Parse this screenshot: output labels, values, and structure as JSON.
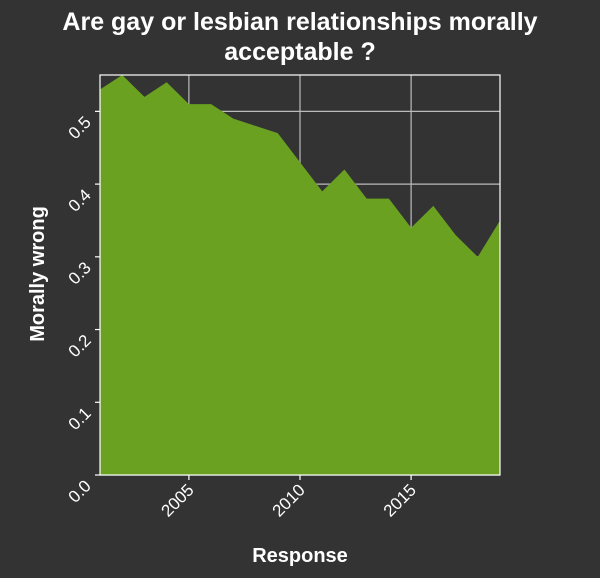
{
  "chart_data": {
    "type": "area",
    "title": "Are gay or lesbian relationships morally acceptable ?",
    "title_lines": [
      "Are gay or lesbian relationships morally",
      "acceptable ?"
    ],
    "xlabel": "Response",
    "ylabel": "Morally wrong",
    "x": [
      2001,
      2002,
      2003,
      2004,
      2005,
      2006,
      2007,
      2008,
      2009,
      2010,
      2011,
      2012,
      2013,
      2014,
      2015,
      2016,
      2017,
      2018,
      2019
    ],
    "series": [
      {
        "values": [
          0.53,
          0.55,
          0.52,
          0.54,
          0.51,
          0.51,
          0.49,
          0.48,
          0.47,
          0.43,
          0.39,
          0.42,
          0.38,
          0.38,
          0.34,
          0.37,
          0.33,
          0.3,
          0.35
        ]
      }
    ],
    "xlim": [
      2001,
      2019
    ],
    "ylim": [
      0,
      0.55
    ],
    "x_ticks": [
      "2005",
      "2010",
      "2015"
    ],
    "y_ticks": [
      "0.0",
      "0.1",
      "0.2",
      "0.3",
      "0.4",
      "0.5"
    ],
    "grid": true,
    "colors": {
      "fill": "#6aa121",
      "background": "#333333",
      "grid": "#bbbbbb",
      "text": "#ffffff"
    }
  }
}
